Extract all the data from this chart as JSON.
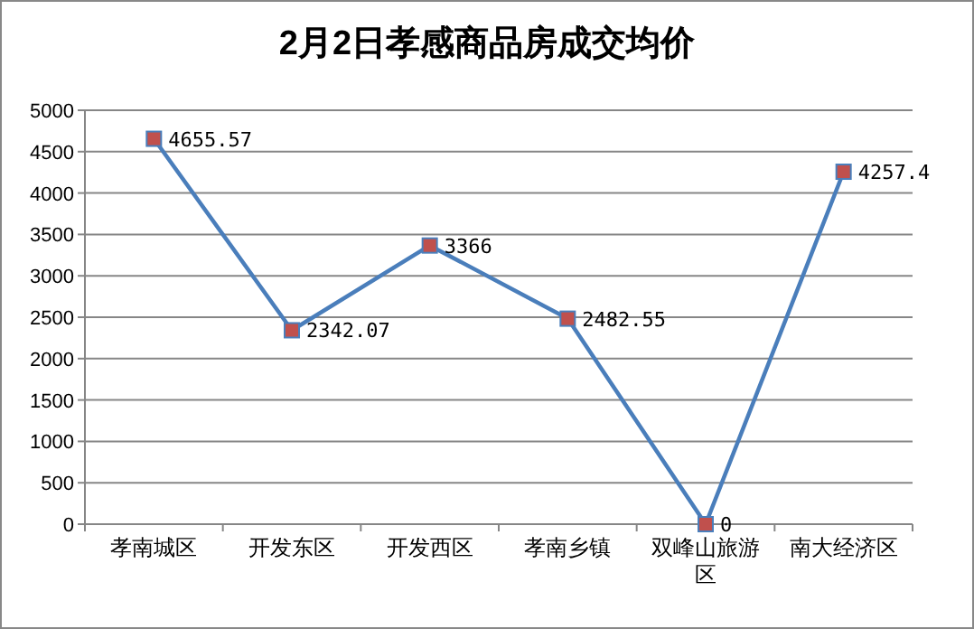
{
  "chart_data": {
    "type": "line",
    "title": "2月2日孝感商品房成交均价",
    "categories": [
      "孝南城区",
      "开发东区",
      "开发西区",
      "孝南乡镇",
      "双峰山旅游区",
      "南大经济区"
    ],
    "series": [
      {
        "color": "#4a7ebb",
        "colors": [
          "#c0504d",
          "#c0504d",
          "#c0504d",
          "#c0504d",
          "#c0504d",
          "#c0504d"
        ],
        "values": [
          4655.57,
          2342.07,
          3366,
          2482.55,
          0,
          4257.4
        ]
      }
    ],
    "ylim": [
      0,
      5000
    ],
    "yticks": [
      0,
      500,
      1000,
      1500,
      2000,
      2500,
      3000,
      3500,
      4000,
      4500,
      5000
    ],
    "grid": "y",
    "marker": "square",
    "line_style": "solid",
    "data_labels": true
  }
}
